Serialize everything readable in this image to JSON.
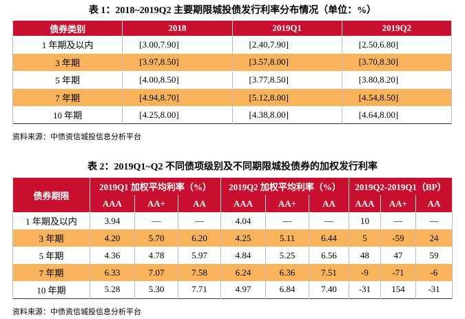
{
  "table1": {
    "title": "表 1：2018~2019Q2 主要期限城投债发行利率分布情况（单位：%）",
    "headers": [
      "债券类别",
      "2018",
      "2019Q1",
      "2019Q2"
    ],
    "rows": [
      [
        "1 年期及以内",
        "[3.00,7.90]",
        "[2.40,7.90]",
        "[2.50,6.80]"
      ],
      [
        "3 年期",
        "[3.97,8.50]",
        "[3.57,8.00]",
        "[3.70,8.30]"
      ],
      [
        "5 年期",
        "[4.00,8.50]",
        "[3.77,8.50]",
        "[3.80,8.20]"
      ],
      [
        "7 年期",
        "[4.94,8.70]",
        "[5.12,8.00]",
        "[4.54,8.50]"
      ],
      [
        "10 年期",
        "[4.25,8.00]",
        "[4.38,8.00]",
        "[4.64,8.00]"
      ]
    ],
    "source": "资料来源：中债资信城投信息分析平台"
  },
  "table2": {
    "title": "表 2：2019Q1~Q2 不同债项级别及不同期限城投债券的加权发行利率",
    "corner": "债券期限",
    "groups": [
      "2019Q1 加权平均利率（%）",
      "2019Q2 加权平均利率（%）",
      "2019Q2-2019Q1（BP）"
    ],
    "subheaders": [
      "AAA",
      "AA+",
      "AA",
      "AAA",
      "AA+",
      "AA",
      "AAA",
      "AA+",
      "AA"
    ],
    "rows": [
      [
        "1 年期及以内",
        "3.94",
        "—",
        "—",
        "4.04",
        "—",
        "—",
        "10",
        "—",
        "—"
      ],
      [
        "3 年期",
        "4.20",
        "5.70",
        "6.20",
        "4.25",
        "5.11",
        "6.44",
        "5",
        "-59",
        "24"
      ],
      [
        "5 年期",
        "4.36",
        "4.78",
        "5.97",
        "4.84",
        "5.25",
        "6.56",
        "48",
        "47",
        "59"
      ],
      [
        "7 年期",
        "6.33",
        "7.07",
        "7.58",
        "6.24",
        "6.36",
        "7.51",
        "-9",
        "-71",
        "-6"
      ],
      [
        "10 年期",
        "5.28",
        "5.30",
        "7.71",
        "4.97",
        "6.84",
        "7.40",
        "-31",
        "154",
        "-31"
      ]
    ],
    "source": "资料来源：中债资信城投信息分析平台"
  }
}
